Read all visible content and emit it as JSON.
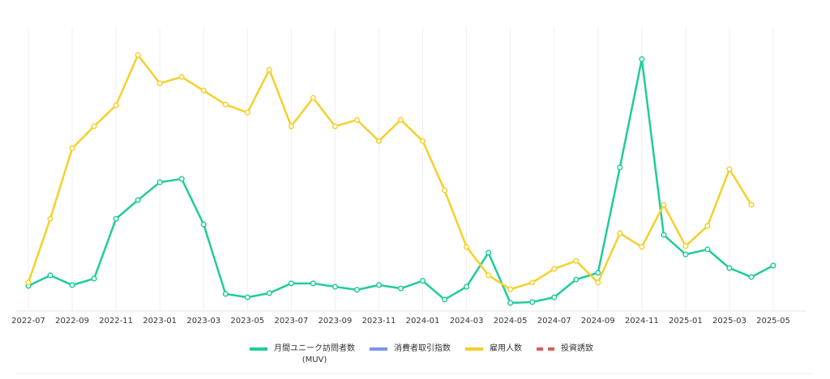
{
  "chart_data": {
    "type": "line",
    "categories": [
      "2022-07",
      null,
      "2022-09",
      null,
      "2022-11",
      null,
      "2023-01",
      null,
      "2023-03",
      null,
      "2023-05",
      null,
      "2023-07",
      null,
      "2023-09",
      null,
      "2023-11",
      null,
      "2024-01",
      null,
      "2024-03",
      null,
      "2024-05",
      null,
      "2024-07",
      null,
      "2024-09",
      null,
      "2024-11",
      null,
      "2025-01",
      null,
      "2025-03",
      null,
      "2025-05"
    ],
    "ylim": [
      0,
      100
    ],
    "grid": true,
    "legend": "bottom",
    "series": [
      {
        "name": "月間ユニーク訪問者数\n(MUV)",
        "color": "#1fcc9a",
        "values": [
          9.0,
          12.8,
          9.3,
          11.6,
          33.1,
          39.8,
          46.2,
          47.4,
          31.1,
          6.1,
          4.9,
          6.4,
          9.9,
          9.9,
          8.7,
          7.6,
          9.3,
          8.1,
          10.8,
          4.1,
          8.7,
          20.9,
          2.9,
          3.2,
          4.9,
          11.3,
          13.7,
          51.5,
          90.4,
          27.3,
          20.3,
          22.1,
          15.4,
          12.2,
          16.3
        ]
      },
      {
        "name": "消費者取引指数",
        "color": "#7b93ea",
        "values": [
          null,
          null,
          null,
          null,
          null,
          null,
          null,
          null,
          null,
          null,
          null,
          null,
          null,
          null,
          null,
          null,
          null,
          null,
          null,
          null,
          null,
          null,
          null,
          null,
          null,
          null,
          null,
          null,
          null,
          null,
          null,
          null,
          null,
          null,
          null
        ]
      },
      {
        "name": "雇用人数",
        "color": "#f5d02a",
        "values": [
          10.2,
          33.1,
          58.4,
          66.3,
          73.8,
          91.9,
          81.7,
          84.0,
          79.1,
          74.1,
          71.2,
          86.6,
          66.3,
          76.5,
          66.3,
          68.6,
          61.0,
          68.6,
          61.0,
          43.3,
          23.0,
          12.8,
          7.8,
          10.2,
          15.1,
          18.0,
          10.2,
          27.9,
          23.0,
          38.1,
          23.3,
          30.5,
          50.9,
          38.1,
          null
        ]
      },
      {
        "name": "投資誘致",
        "color": "#e05a5a",
        "dashed": true,
        "values": [
          null,
          null,
          null,
          null,
          null,
          null,
          null,
          null,
          null,
          null,
          null,
          null,
          null,
          null,
          null,
          null,
          null,
          null,
          null,
          null,
          null,
          null,
          null,
          null,
          null,
          null,
          null,
          null,
          null,
          null,
          null,
          null,
          null,
          null,
          null
        ]
      }
    ]
  }
}
